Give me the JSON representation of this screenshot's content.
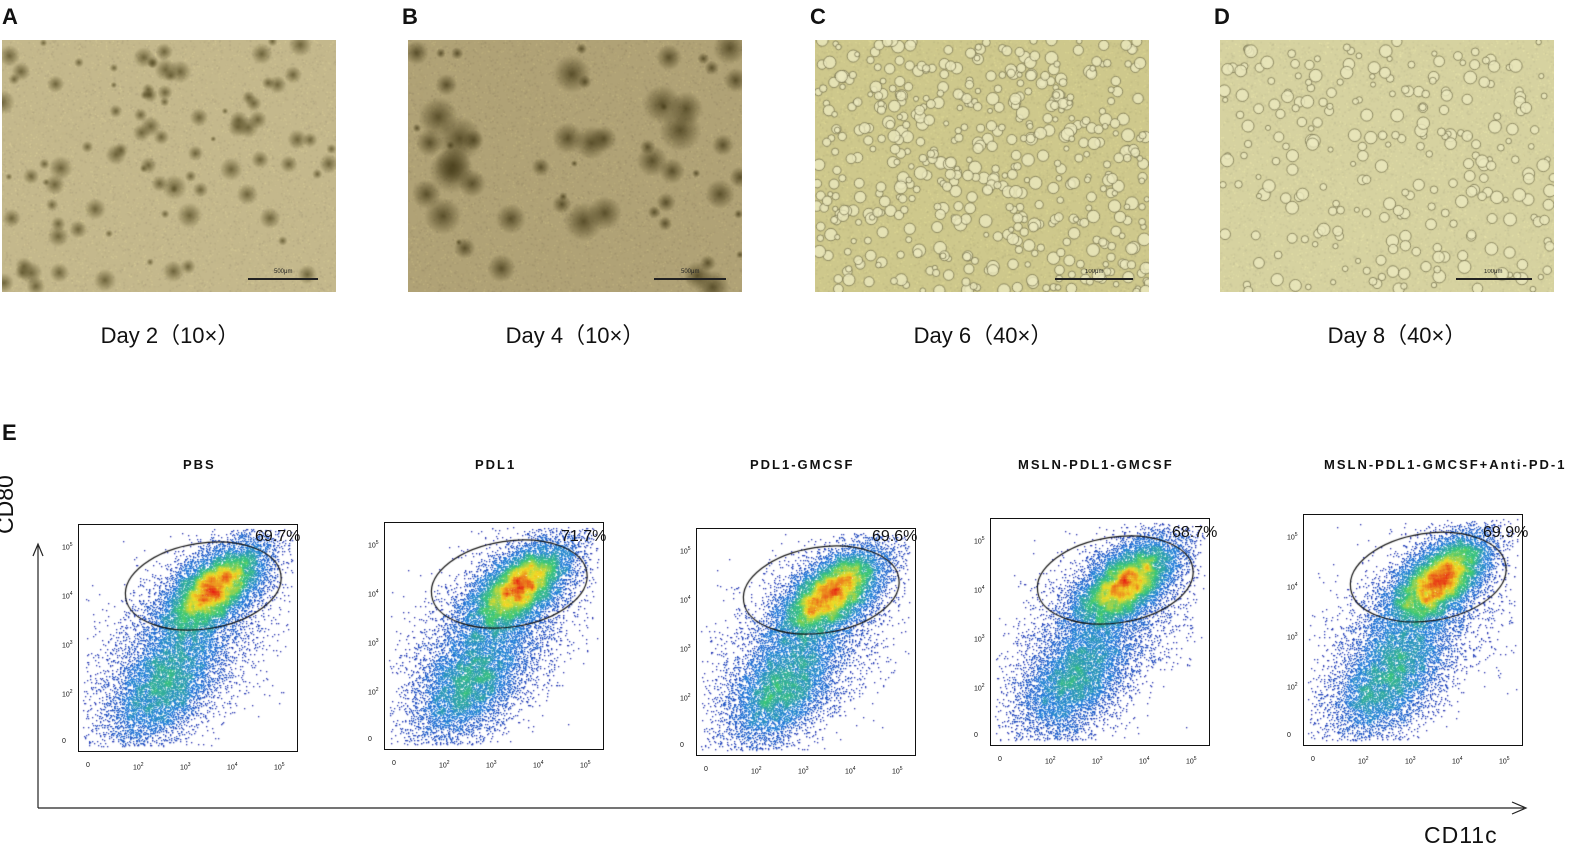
{
  "panels": {
    "micro_letters": [
      "A",
      "B",
      "C",
      "D"
    ],
    "flow_letter": "E"
  },
  "micrographs": [
    {
      "caption": "Day 2（10×）",
      "scale": "500μm"
    },
    {
      "caption": "Day 4（10×）",
      "scale": "500μm"
    },
    {
      "caption": "Day 6（40×）",
      "scale": "100μm"
    },
    {
      "caption": "Day 8（40×）",
      "scale": "100μm"
    }
  ],
  "flow": {
    "y_axis_label": "CD80",
    "x_axis_label": "CD11c",
    "tick_labels": [
      "0",
      "10",
      "10",
      "10",
      "10"
    ],
    "tick_exponents": [
      "",
      "2",
      "3",
      "4",
      "5"
    ],
    "groups": [
      {
        "name": "PBS",
        "gate_percent": "69.7%"
      },
      {
        "name": "PDL1",
        "gate_percent": "71.7%"
      },
      {
        "name": "PDL1-GMCSF",
        "gate_percent": "69.6%"
      },
      {
        "name": "MSLN-PDL1-GMCSF",
        "gate_percent": "68.7%"
      },
      {
        "name": "MSLN-PDL1-GMCSF+Anti-PD-1",
        "gate_percent": "69.9%"
      }
    ]
  }
}
